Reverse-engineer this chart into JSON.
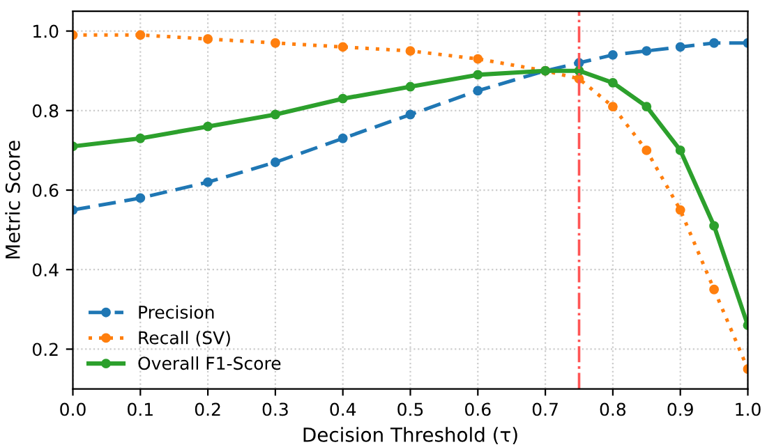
{
  "chart_data": {
    "type": "line",
    "xlabel": "Decision Threshold (τ)",
    "ylabel": "Metric Score",
    "x": [
      0,
      0.1,
      0.2,
      0.3,
      0.4,
      0.5,
      0.6,
      0.7,
      0.75,
      0.8,
      0.85,
      0.9,
      0.95,
      1.0
    ],
    "series": [
      {
        "name": "Precision",
        "color": "#1f77b4",
        "line_style": "dashed",
        "values": [
          0.55,
          0.58,
          0.62,
          0.67,
          0.73,
          0.79,
          0.85,
          0.9,
          0.92,
          0.94,
          0.95,
          0.96,
          0.97,
          0.97
        ]
      },
      {
        "name": "Recall (SV)",
        "color": "#ff7f0e",
        "line_style": "dotted",
        "values": [
          0.99,
          0.99,
          0.98,
          0.97,
          0.96,
          0.95,
          0.93,
          0.9,
          0.88,
          0.81,
          0.7,
          0.55,
          0.35,
          0.15
        ]
      },
      {
        "name": "Overall F1-Score",
        "color": "#2ca02c",
        "line_style": "solid",
        "values": [
          0.71,
          0.73,
          0.76,
          0.79,
          0.83,
          0.86,
          0.89,
          0.9,
          0.9,
          0.87,
          0.81,
          0.7,
          0.51,
          0.26
        ]
      }
    ],
    "marker": "circle",
    "xlim": [
      0,
      1
    ],
    "xticks": [
      {
        "value": 0,
        "label": "0.0"
      },
      0.1,
      0.2,
      0.3,
      0.4,
      0.5,
      0.6,
      0.7,
      0.8,
      0.9,
      {
        "value": 1,
        "label": "1.0"
      }
    ],
    "ylim": [
      0.1,
      1.05
    ],
    "yticks": [
      0.2,
      0.4,
      0.6,
      0.8,
      {
        "value": 1,
        "label": "1.0"
      }
    ],
    "ref_lines": [
      {
        "axis": "x",
        "value": 0.75,
        "color": "#ff5555",
        "line_style": "dashdot"
      }
    ],
    "grid": true,
    "legend": "bottom left"
  }
}
